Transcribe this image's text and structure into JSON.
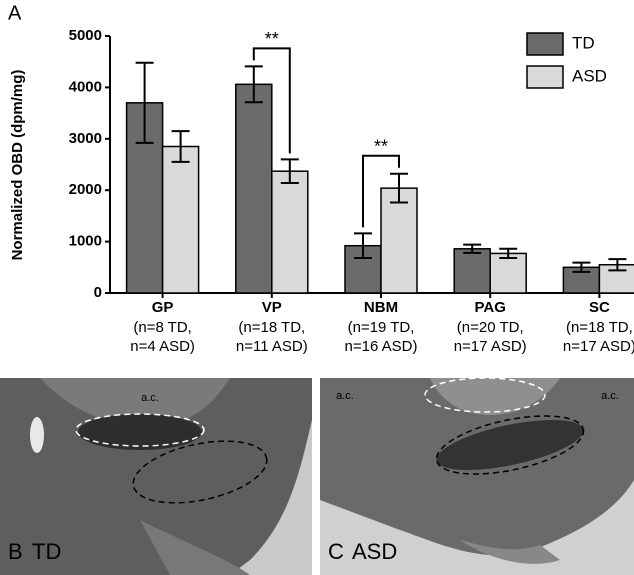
{
  "panel_label": "A",
  "chart_data": {
    "type": "bar",
    "ylabel": "Normalized OBD (dpm/mg)",
    "categories": [
      "GP",
      "VP",
      "NBM",
      "PAG",
      "SC"
    ],
    "category_notes": [
      [
        "(n=8 TD,",
        "n=4 ASD)"
      ],
      [
        "(n=18 TD,",
        "n=11 ASD)"
      ],
      [
        "(n=19 TD,",
        "n=16 ASD)"
      ],
      [
        "(n=20 TD,",
        "n=17 ASD)"
      ],
      [
        "(n=18 TD,",
        "n=17 ASD)"
      ]
    ],
    "series": [
      {
        "name": "TD",
        "color": "#6b6b6b",
        "values": [
          3700,
          4060,
          920,
          860,
          500
        ],
        "errors": [
          780,
          350,
          240,
          80,
          90
        ]
      },
      {
        "name": "ASD",
        "color": "#d9d9d9",
        "values": [
          2850,
          2370,
          2040,
          770,
          550
        ],
        "errors": [
          300,
          230,
          280,
          90,
          110
        ]
      }
    ],
    "significance": [
      "**",
      "**"
    ],
    "ylim": [
      0,
      5000
    ],
    "yticks": [
      0,
      1000,
      2000,
      3000,
      4000,
      5000
    ],
    "legend": "top-right"
  },
  "images": [
    {
      "panel": "B",
      "label": "TD",
      "annotations": [
        "a.c."
      ]
    },
    {
      "panel": "C",
      "label": "ASD",
      "annotations": [
        "a.c.",
        "a.c."
      ]
    }
  ]
}
